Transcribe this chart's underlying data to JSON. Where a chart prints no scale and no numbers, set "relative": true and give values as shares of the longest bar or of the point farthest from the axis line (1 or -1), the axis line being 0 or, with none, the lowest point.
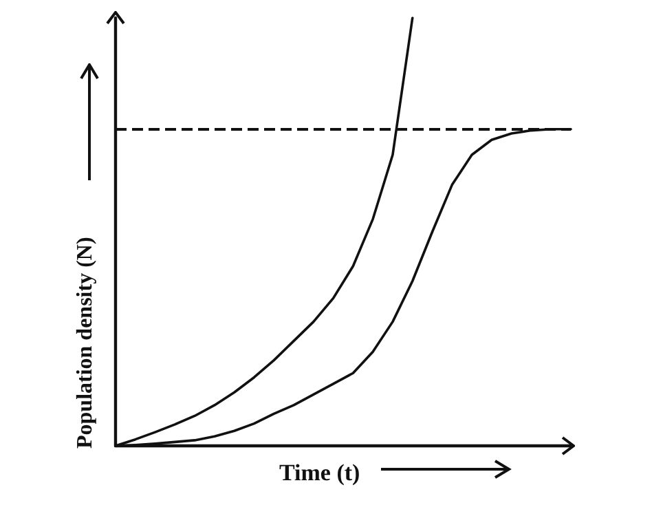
{
  "chart_data": {
    "type": "line",
    "relative": true,
    "xlabel": "Time (t)",
    "ylabel": "Population density (N)",
    "grid": false,
    "marker": "none",
    "line_style": "solid",
    "color": "#111111",
    "categories": [
      null,
      null,
      null,
      null,
      null,
      null,
      null,
      null,
      null,
      null,
      null,
      null,
      null,
      null,
      null,
      null,
      null,
      null,
      null,
      null,
      null,
      null,
      null,
      null
    ],
    "series": [
      {
        "color": "#111111",
        "values": [
          0,
          0.015,
          0.032,
          0.05,
          0.07,
          0.095,
          0.125,
          0.16,
          0.2,
          0.245,
          0.29,
          0.345,
          0.42,
          0.53,
          0.68,
          1.0,
          null,
          null,
          null,
          null,
          null,
          null,
          null,
          null
        ]
      },
      {
        "color": "#111111",
        "values": [
          0,
          0.002,
          0.005,
          0.009,
          0.013,
          0.022,
          0.035,
          0.052,
          0.075,
          0.095,
          0.12,
          0.145,
          0.17,
          0.22,
          0.29,
          0.385,
          0.5,
          0.61,
          0.68,
          0.715,
          0.73,
          0.737,
          0.74,
          0.74
        ]
      }
    ],
    "ref_lines": [
      {
        "axis": "y",
        "value": 0.74,
        "line_style": "dashed",
        "color": "#111111"
      }
    ]
  }
}
